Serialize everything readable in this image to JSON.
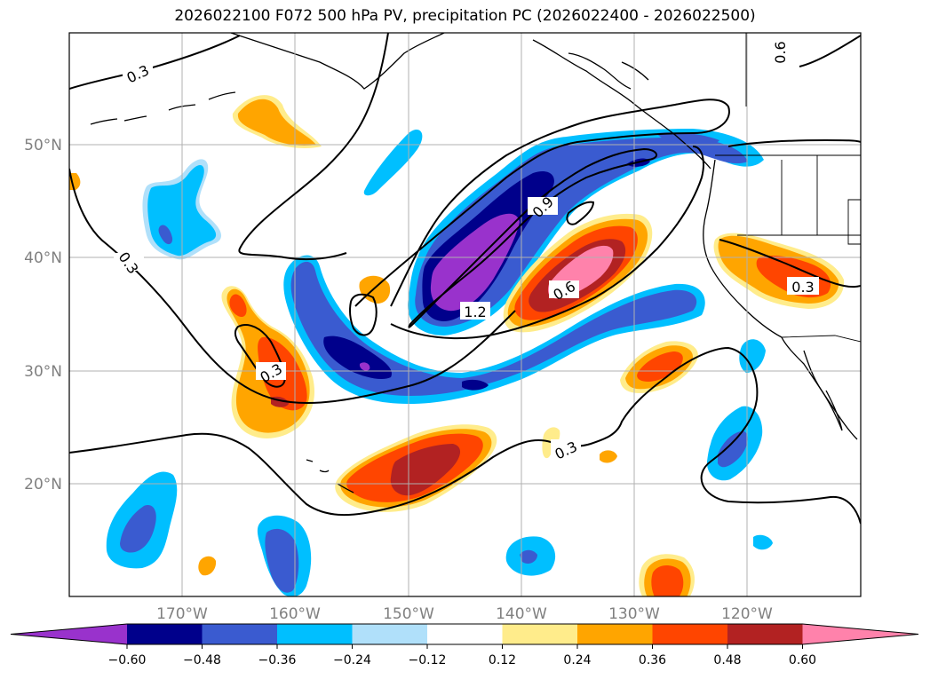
{
  "title": "2026022100 F072 500 hPa PV, precipitation PC (2026022400 - 2026022500)",
  "lat_labels": [
    "50°N",
    "40°N",
    "30°N",
    "20°N"
  ],
  "lon_labels": [
    "170°W",
    "160°W",
    "150°W",
    "140°W",
    "130°W",
    "120°W"
  ],
  "contour_labels": [
    "0.3",
    "0.3",
    "0.3",
    "0.3",
    "0.3",
    "0.9",
    "1.2",
    "0.6",
    "0.6"
  ],
  "colorbar": {
    "ticks": [
      "−0.60",
      "−0.48",
      "−0.36",
      "−0.24",
      "−0.12",
      "0.12",
      "0.24",
      "0.36",
      "0.48",
      "0.60"
    ],
    "colors": [
      "#9932cc",
      "#00008b",
      "#3a5bd0",
      "#00bfff",
      "#b0e0fa",
      "#ffffff",
      "#ffec8b",
      "#ffa500",
      "#ff4500",
      "#b22222",
      "#ff82ab"
    ]
  }
}
